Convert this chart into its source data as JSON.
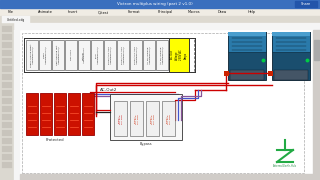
{
  "bg_color": "#c8c8c8",
  "titlebar_color": "#3a6fbe",
  "titlebar_text": "Victron multiplus wiring (part 2 v1.0)",
  "menubar_color": "#e0dcd4",
  "menu_items": [
    "File",
    "Animate",
    "Insert",
    "Q-test",
    "Format",
    "Principal",
    "Macros",
    "Draw",
    "Help"
  ],
  "ruler_color": "#f0f0f0",
  "canvas_color": "#ffffff",
  "toolbar_left_color": "#dbd8d0",
  "dashed_border": "#888888",
  "cb_fill": "#f5f5f5",
  "cb_border": "#444444",
  "yellow_panel": "#ffff00",
  "inverter_dark": "#1a4e6e",
  "inverter_mid": "#2a7aaa",
  "inverter_light": "#4a9ece",
  "inverter_port": "#445566",
  "green_dot": "#00cc44",
  "battery_red": "#cc1100",
  "battery_dark": "#990000",
  "wire_red": "#cc0000",
  "wire_black": "#222222",
  "wire_blue": "#4455cc",
  "wire_purple": "#885599",
  "red_square": "#cc2200",
  "logo_green": "#22aa44",
  "share_color": "#2255aa"
}
